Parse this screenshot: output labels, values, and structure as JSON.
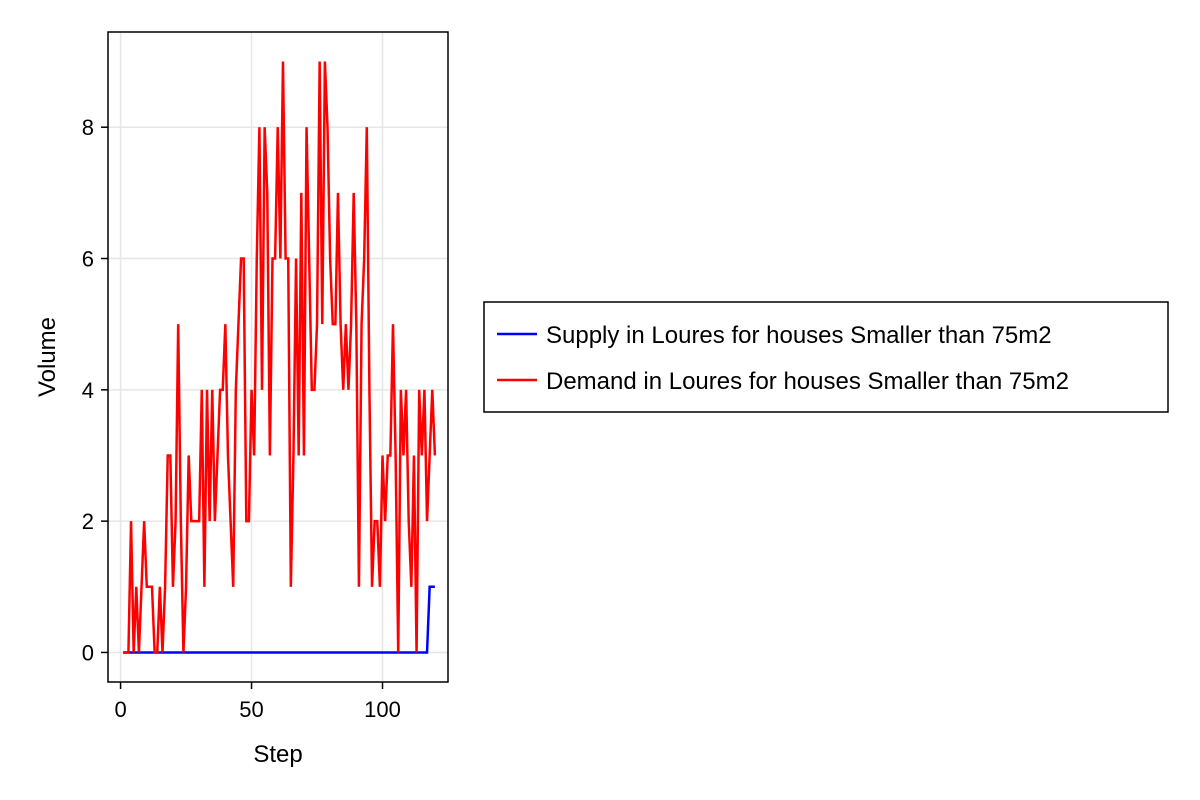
{
  "chart_data": {
    "type": "line",
    "title": "",
    "xlabel": "Step",
    "ylabel": "Volume",
    "xlim": [
      -4.8,
      125
    ],
    "ylim": [
      -0.45,
      9.45
    ],
    "xticks": [
      0,
      50,
      100
    ],
    "yticks": [
      0,
      2,
      4,
      6,
      8
    ],
    "xtick_labels": [
      "0",
      "50",
      "100"
    ],
    "ytick_labels": [
      "0",
      "2",
      "4",
      "6",
      "8"
    ],
    "grid": true,
    "legend_position": "right",
    "series": [
      {
        "name": "Supply in Loures for houses Smaller than 75m2",
        "color": "#0000ff",
        "x": [
          1,
          2,
          3,
          4,
          5,
          6,
          7,
          8,
          9,
          10,
          11,
          12,
          13,
          14,
          15,
          16,
          17,
          18,
          19,
          20,
          21,
          22,
          23,
          24,
          25,
          26,
          27,
          28,
          29,
          30,
          31,
          32,
          33,
          34,
          35,
          36,
          37,
          38,
          39,
          40,
          41,
          42,
          43,
          44,
          45,
          46,
          47,
          48,
          49,
          50,
          51,
          52,
          53,
          54,
          55,
          56,
          57,
          58,
          59,
          60,
          61,
          62,
          63,
          64,
          65,
          66,
          67,
          68,
          69,
          70,
          71,
          72,
          73,
          74,
          75,
          76,
          77,
          78,
          79,
          80,
          81,
          82,
          83,
          84,
          85,
          86,
          87,
          88,
          89,
          90,
          91,
          92,
          93,
          94,
          95,
          96,
          97,
          98,
          99,
          100,
          101,
          102,
          103,
          104,
          105,
          106,
          107,
          108,
          109,
          110,
          111,
          112,
          113,
          114,
          115,
          116,
          117,
          118,
          119,
          120
        ],
        "values": [
          0,
          0,
          0,
          0,
          0,
          0,
          0,
          0,
          0,
          0,
          0,
          0,
          0,
          0,
          0,
          0,
          0,
          0,
          0,
          0,
          0,
          0,
          0,
          0,
          0,
          0,
          0,
          0,
          0,
          0,
          0,
          0,
          0,
          0,
          0,
          0,
          0,
          0,
          0,
          0,
          0,
          0,
          0,
          0,
          0,
          0,
          0,
          0,
          0,
          0,
          0,
          0,
          0,
          0,
          0,
          0,
          0,
          0,
          0,
          0,
          0,
          0,
          0,
          0,
          0,
          0,
          0,
          0,
          0,
          0,
          0,
          0,
          0,
          0,
          0,
          0,
          0,
          0,
          0,
          0,
          0,
          0,
          0,
          0,
          0,
          0,
          0,
          0,
          0,
          0,
          0,
          0,
          0,
          0,
          0,
          0,
          0,
          0,
          0,
          0,
          0,
          0,
          0,
          0,
          0,
          0,
          0,
          0,
          0,
          0,
          0,
          0,
          0,
          0,
          0,
          0,
          0,
          1,
          1,
          1
        ]
      },
      {
        "name": "Demand in Loures for houses Smaller than 75m2",
        "color": "#ff0000",
        "x": [
          1,
          2,
          3,
          4,
          5,
          6,
          7,
          8,
          9,
          10,
          11,
          12,
          13,
          14,
          15,
          16,
          17,
          18,
          19,
          20,
          21,
          22,
          23,
          24,
          25,
          26,
          27,
          28,
          29,
          30,
          31,
          32,
          33,
          34,
          35,
          36,
          37,
          38,
          39,
          40,
          41,
          42,
          43,
          44,
          45,
          46,
          47,
          48,
          49,
          50,
          51,
          52,
          53,
          54,
          55,
          56,
          57,
          58,
          59,
          60,
          61,
          62,
          63,
          64,
          65,
          66,
          67,
          68,
          69,
          70,
          71,
          72,
          73,
          74,
          75,
          76,
          77,
          78,
          79,
          80,
          81,
          82,
          83,
          84,
          85,
          86,
          87,
          88,
          89,
          90,
          91,
          92,
          93,
          94,
          95,
          96,
          97,
          98,
          99,
          100,
          101,
          102,
          103,
          104,
          105,
          106,
          107,
          108,
          109,
          110,
          111,
          112,
          113,
          114,
          115,
          116,
          117,
          118,
          119,
          120
        ],
        "values": [
          0,
          0,
          0,
          2,
          0,
          1,
          0,
          1,
          2,
          1,
          1,
          1,
          0,
          0,
          1,
          0,
          1,
          3,
          3,
          1,
          2,
          5,
          2,
          0,
          1,
          3,
          2,
          2,
          2,
          2,
          4,
          1,
          4,
          2,
          4,
          2,
          3,
          4,
          4,
          5,
          3,
          2,
          1,
          4,
          5,
          6,
          6,
          2,
          2,
          4,
          3,
          6,
          8,
          4,
          8,
          7,
          3,
          6,
          6,
          8,
          6,
          9,
          6,
          6,
          1,
          3,
          6,
          3,
          7,
          3,
          8,
          6,
          4,
          4,
          5,
          9,
          5,
          9,
          8,
          6,
          5,
          5,
          7,
          5,
          4,
          5,
          4,
          5,
          7,
          5,
          1,
          5,
          6,
          8,
          4,
          1,
          2,
          2,
          1,
          3,
          2,
          3,
          3,
          5,
          3,
          0,
          4,
          3,
          4,
          2,
          1,
          3,
          0,
          4,
          3,
          4,
          2,
          3,
          4,
          3
        ]
      }
    ]
  }
}
